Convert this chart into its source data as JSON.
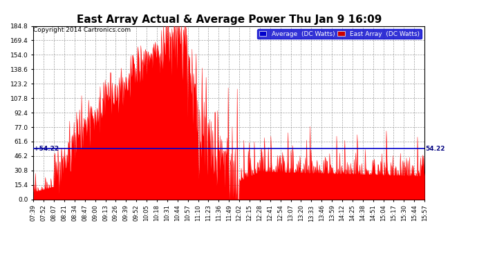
{
  "title": "East Array Actual & Average Power Thu Jan 9 16:09",
  "copyright": "Copyright 2014 Cartronics.com",
  "average_value": 54.22,
  "ymax": 184.8,
  "ymin": 0.0,
  "yticks": [
    0.0,
    15.4,
    30.8,
    46.2,
    61.6,
    77.0,
    92.4,
    107.8,
    123.2,
    138.6,
    154.0,
    169.4,
    184.8
  ],
  "background_color": "#ffffff",
  "plot_bg_color": "#ffffff",
  "grid_color": "#888888",
  "line_color_avg": "#0000cc",
  "fill_color_east": "#ff0000",
  "legend_avg_bg": "#0000cc",
  "legend_east_bg": "#cc0000",
  "title_fontsize": 11,
  "x_labels": [
    "07:39",
    "07:52",
    "08:07",
    "08:21",
    "08:34",
    "08:47",
    "09:00",
    "09:13",
    "09:26",
    "09:39",
    "09:52",
    "10:05",
    "10:18",
    "10:31",
    "10:44",
    "10:57",
    "11:10",
    "11:23",
    "11:36",
    "11:49",
    "12:02",
    "12:15",
    "12:28",
    "12:41",
    "12:54",
    "13:07",
    "13:20",
    "13:33",
    "13:46",
    "13:59",
    "14:12",
    "14:25",
    "14:38",
    "14:51",
    "15:04",
    "15:17",
    "15:30",
    "15:44",
    "15:57"
  ]
}
